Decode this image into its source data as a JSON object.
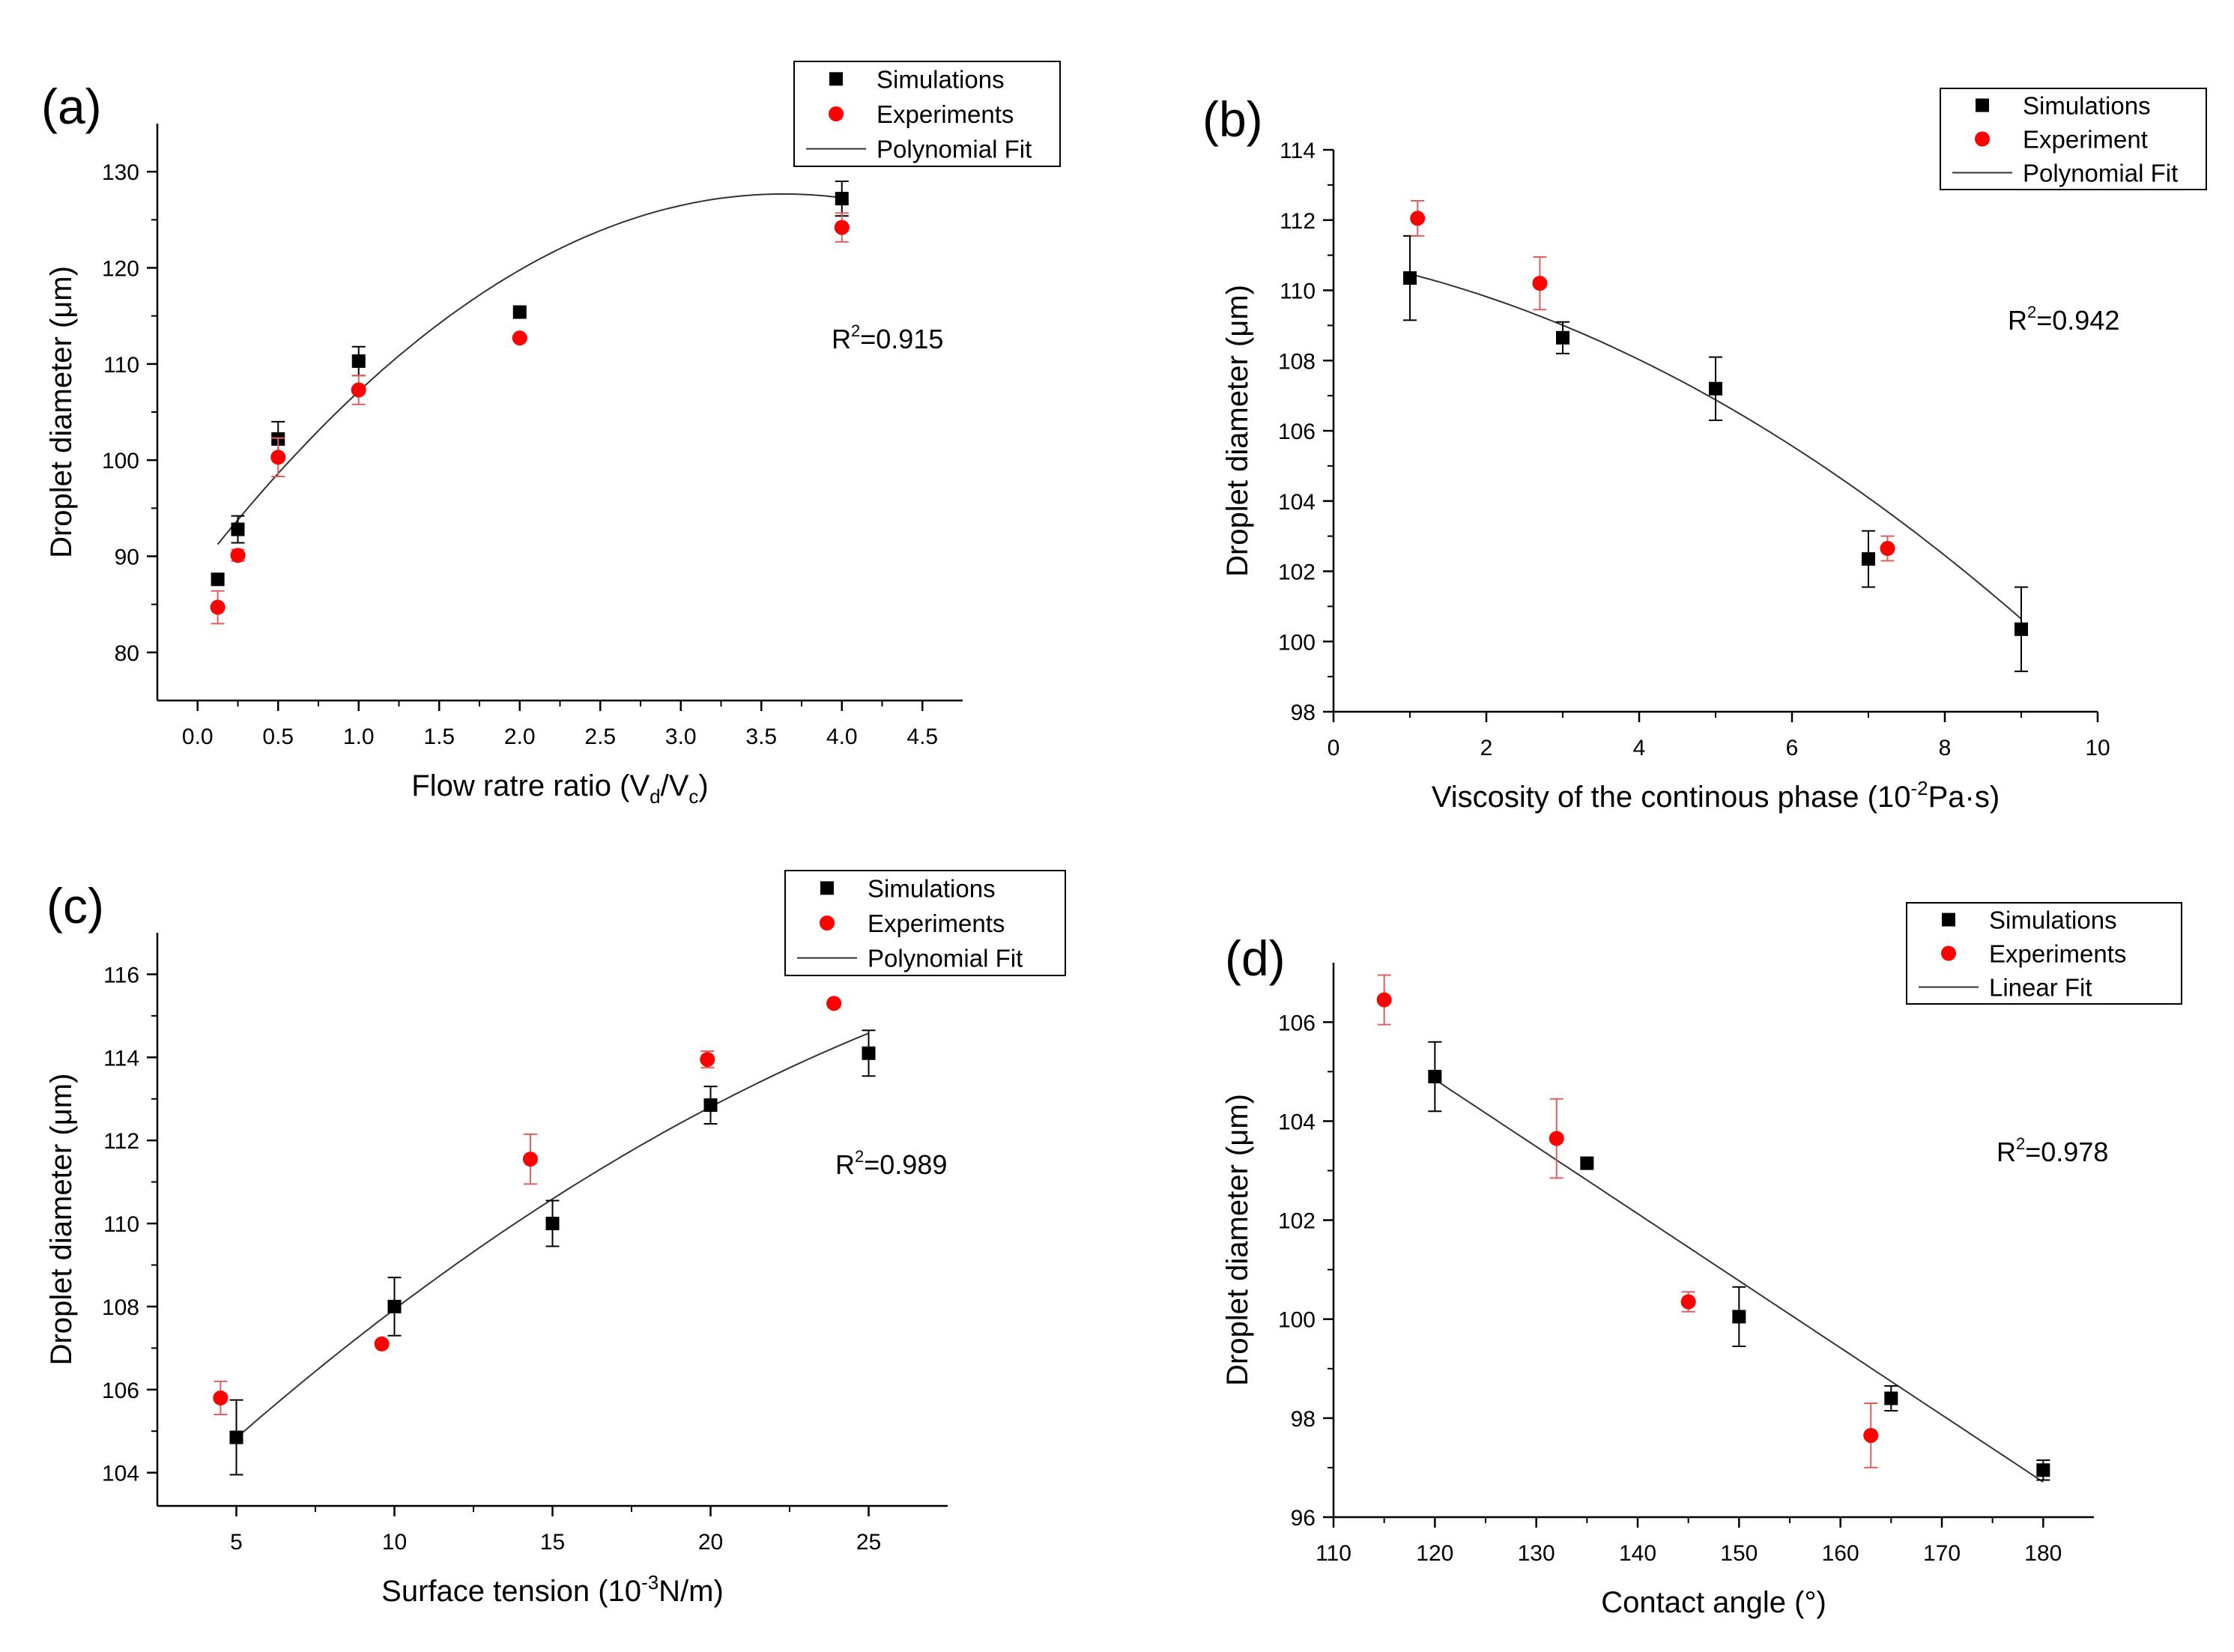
{
  "chart_data": [
    {
      "type": "scatter",
      "panel_label": "(a)",
      "xlabel": {
        "main": "Flow ratre ratio (V",
        "sub1": "d",
        "mid": "/V",
        "sub2": "c",
        "end": ")"
      },
      "ylabel": "Droplet diameter (μm)",
      "xlim": [
        -0.25,
        4.75
      ],
      "ylim": [
        75,
        135
      ],
      "xticks": [
        0.0,
        0.5,
        1.0,
        1.5,
        2.0,
        2.5,
        3.0,
        3.5,
        4.0,
        4.5
      ],
      "xtick_labels": [
        "0.0",
        "0.5",
        "1.0",
        "1.5",
        "2.0",
        "2.5",
        "3.0",
        "3.5",
        "4.0",
        "4.5"
      ],
      "yticks": [
        80,
        90,
        100,
        110,
        120,
        130
      ],
      "ytick_labels": [
        "80",
        "90",
        "100",
        "110",
        "120",
        "130"
      ],
      "r2": {
        "prefix": "R",
        "sup": "2",
        "value": "=0.915"
      },
      "legend": [
        "Simulations",
        "Experiments",
        "Polynomial Fit"
      ],
      "series": [
        {
          "name": "Simulations",
          "x": [
            0.125,
            0.25,
            0.5,
            1.0,
            2.0,
            4.0
          ],
          "y": [
            87.6,
            92.8,
            102.2,
            110.3,
            115.4,
            127.2
          ],
          "err": [
            0.0,
            1.4,
            1.8,
            1.5,
            0.0,
            1.8
          ]
        },
        {
          "name": "Experiments",
          "x": [
            0.125,
            0.25,
            0.5,
            1.0,
            2.0,
            4.0
          ],
          "y": [
            84.7,
            90.1,
            100.3,
            107.3,
            112.7,
            124.2
          ],
          "err": [
            1.7,
            0.6,
            2.0,
            1.5,
            0.0,
            1.5
          ]
        }
      ],
      "fit": {
        "name": "Polynomial Fit",
        "type": "quadratic",
        "x_range": [
          0.125,
          4.0
        ],
        "coefficients": [
          88.6,
          21.5,
          -2.957
        ]
      }
    },
    {
      "type": "scatter",
      "panel_label": "(b)",
      "xlabel": {
        "main": "Viscosity of  the continous phase (10",
        "sup": "-2",
        "end": "Pa·s)"
      },
      "ylabel": "Droplet diameter (μm)",
      "xlim": [
        0,
        10
      ],
      "ylim": [
        98,
        114
      ],
      "xticks": [
        0,
        2,
        4,
        6,
        8,
        10
      ],
      "xtick_labels": [
        "0",
        "2",
        "4",
        "6",
        "8",
        "10"
      ],
      "yticks": [
        98,
        100,
        102,
        104,
        106,
        108,
        110,
        112,
        114
      ],
      "ytick_labels": [
        "98",
        "100",
        "102",
        "104",
        "106",
        "108",
        "110",
        "112",
        "114"
      ],
      "r2": {
        "prefix": "R",
        "sup": "2",
        "value": "=0.942"
      },
      "legend": [
        "Simulations",
        "Experiment",
        "Polynomial Fit"
      ],
      "series": [
        {
          "name": "Simulations",
          "x": [
            1,
            3,
            5,
            7,
            9
          ],
          "y": [
            110.35,
            108.65,
            107.2,
            102.35,
            100.35
          ],
          "err": [
            1.2,
            0.45,
            0.9,
            0.8,
            1.2
          ]
        },
        {
          "name": "Experiment",
          "x": [
            1.1,
            2.7,
            7.25
          ],
          "y": [
            112.05,
            110.2,
            102.65
          ],
          "err": [
            0.5,
            0.75,
            0.35
          ]
        }
      ],
      "fit": {
        "name": "Polynomial Fit",
        "type": "quadratic",
        "x_range": [
          1,
          9
        ],
        "coefficients": [
          110.95,
          -0.4,
          -0.0828
        ]
      }
    },
    {
      "type": "scatter",
      "panel_label": "(c)",
      "xlabel": {
        "main": "Surface tension (10",
        "sup": "-3",
        "end": "N/m)"
      },
      "ylabel": "Droplet diameter (μm)",
      "xlim": [
        2.5,
        27.5
      ],
      "ylim": [
        103.2,
        117
      ],
      "xticks": [
        5,
        10,
        15,
        20,
        25
      ],
      "xtick_labels": [
        "5",
        "10",
        "15",
        "20",
        "25"
      ],
      "yticks": [
        104,
        106,
        108,
        110,
        112,
        114,
        116
      ],
      "ytick_labels": [
        "104",
        "106",
        "108",
        "110",
        "112",
        "114",
        "116"
      ],
      "r2": {
        "prefix": "R",
        "sup": "2",
        "value": "=0.989"
      },
      "legend": [
        "Simulations",
        "Experiments",
        "Polynomial Fit"
      ],
      "series": [
        {
          "name": "Simulations",
          "x": [
            5,
            10,
            15,
            20,
            25
          ],
          "y": [
            104.85,
            108.0,
            110.0,
            112.85,
            114.1
          ],
          "err": [
            0.9,
            0.7,
            0.55,
            0.45,
            0.55
          ]
        },
        {
          "name": "Experiments",
          "x": [
            4.5,
            9.6,
            14.3,
            19.9,
            23.9
          ],
          "y": [
            105.8,
            107.1,
            111.55,
            113.95,
            115.3
          ],
          "err": [
            0.4,
            0.0,
            0.6,
            0.2,
            0.0
          ]
        }
      ],
      "fit": {
        "name": "Polynomial Fit",
        "type": "quadratic",
        "x_range": [
          5,
          25
        ],
        "coefficients": [
          101.3,
          0.7515,
          -0.00881
        ]
      }
    },
    {
      "type": "scatter",
      "panel_label": "(d)",
      "xlabel": {
        "main": "Contact angle (°)"
      },
      "ylabel": "Droplet diameter (μm)",
      "xlim": [
        110,
        185
      ],
      "ylim": [
        96,
        107.2
      ],
      "xticks": [
        110,
        120,
        130,
        140,
        150,
        160,
        170,
        180
      ],
      "xtick_labels": [
        "110",
        "120",
        "130",
        "140",
        "150",
        "160",
        "170",
        "180"
      ],
      "yticks": [
        96,
        98,
        100,
        102,
        104,
        106
      ],
      "ytick_labels": [
        "96",
        "98",
        "100",
        "102",
        "104",
        "106"
      ],
      "r2": {
        "prefix": "R",
        "sup": "2",
        "value": "=0.978"
      },
      "legend": [
        "Simulations",
        "Experiments",
        "Linear Fit"
      ],
      "series": [
        {
          "name": "Simulations",
          "x": [
            120,
            135,
            150,
            165,
            180
          ],
          "y": [
            104.9,
            103.15,
            100.05,
            98.4,
            96.95
          ],
          "err": [
            0.7,
            0.0,
            0.6,
            0.25,
            0.2
          ]
        },
        {
          "name": "Experiments",
          "x": [
            115,
            132,
            145,
            163
          ],
          "y": [
            106.45,
            103.65,
            100.35,
            97.65
          ],
          "err": [
            0.5,
            0.8,
            0.2,
            0.65
          ]
        }
      ],
      "fit": {
        "name": "Linear Fit",
        "type": "linear",
        "x_range": [
          120,
          180
        ],
        "coefficients": [
          121.1,
          -0.1355
        ]
      }
    }
  ],
  "colors": {
    "simulations": "#000000",
    "experiments": "#ff0000",
    "experiment_error": "#e06060",
    "axis": "#000000",
    "fit": "#333333"
  }
}
